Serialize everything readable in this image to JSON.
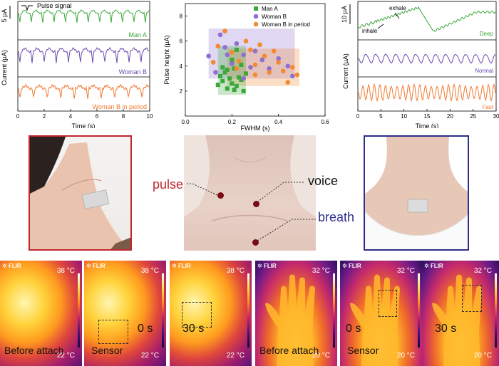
{
  "panel_a": {
    "ylabel": "Current (µA)",
    "scale_label": "5 µA",
    "pulse_signal_label": "Pulse signal",
    "xlabel": "Time (s)",
    "xticks": [
      "0",
      "2",
      "4",
      "6",
      "8",
      "10"
    ],
    "traces": [
      {
        "name": "Man A",
        "color": "#3aa83a"
      },
      {
        "name": "Woman B",
        "color": "#6a4bb0"
      },
      {
        "name": "Woman B in period",
        "color": "#f07a32"
      }
    ]
  },
  "panel_c": {
    "ylabel": "Current (µA)",
    "scale_label": "10 µA",
    "inhale_label": "inhale",
    "exhale_label": "exhale",
    "xlabel": "Time (s)",
    "xticks": [
      "0",
      "5",
      "10",
      "15",
      "20",
      "25",
      "30"
    ],
    "traces": [
      {
        "name": "Deep",
        "color": "#3aa83a"
      },
      {
        "name": "Normal",
        "color": "#6a4bb0"
      },
      {
        "name": "Fast",
        "color": "#f07a32"
      }
    ]
  },
  "chart_data": {
    "type": "scatter",
    "xlabel": "FWHM (s)",
    "ylabel": "Pulse height (µA)",
    "xlim": [
      0,
      0.6
    ],
    "ylim": [
      0,
      9
    ],
    "xticks": [
      "0.0",
      "0.2",
      "0.4",
      "0.6"
    ],
    "yticks": [
      "2",
      "4",
      "6",
      "8"
    ],
    "legend_position": "top-right",
    "series": [
      {
        "name": "Man A",
        "color": "#3aa83a",
        "marker": "square",
        "points": [
          [
            0.14,
            2.5
          ],
          [
            0.15,
            3.2
          ],
          [
            0.16,
            2.8
          ],
          [
            0.17,
            3.5
          ],
          [
            0.18,
            2.2
          ],
          [
            0.19,
            3.0
          ],
          [
            0.2,
            2.6
          ],
          [
            0.21,
            3.8
          ],
          [
            0.22,
            2.4
          ],
          [
            0.23,
            3.1
          ],
          [
            0.24,
            2.9
          ],
          [
            0.25,
            2.0
          ],
          [
            0.2,
            4.5
          ],
          [
            0.22,
            5.3
          ],
          [
            0.18,
            3.7
          ],
          [
            0.26,
            3.4
          ],
          [
            0.16,
            3.9
          ],
          [
            0.24,
            4.1
          ],
          [
            0.21,
            2.1
          ]
        ]
      },
      {
        "name": "Woman B",
        "color": "#8f6fd0",
        "marker": "circle",
        "points": [
          [
            0.1,
            4.8
          ],
          [
            0.13,
            3.5
          ],
          [
            0.15,
            6.5
          ],
          [
            0.17,
            5.5
          ],
          [
            0.2,
            4.2
          ],
          [
            0.22,
            5.8
          ],
          [
            0.25,
            4.9
          ],
          [
            0.28,
            3.9
          ],
          [
            0.3,
            5.2
          ],
          [
            0.33,
            4.5
          ],
          [
            0.36,
            3.8
          ],
          [
            0.4,
            4.6
          ],
          [
            0.44,
            4.0
          ],
          [
            0.46,
            3.2
          ],
          [
            0.25,
            3.0
          ],
          [
            0.18,
            4.9
          ]
        ]
      },
      {
        "name": "Woman B in period",
        "color": "#f28a33",
        "marker": "hexagon",
        "points": [
          [
            0.12,
            4.3
          ],
          [
            0.14,
            5.6
          ],
          [
            0.17,
            6.8
          ],
          [
            0.2,
            5.1
          ],
          [
            0.23,
            4.4
          ],
          [
            0.26,
            6.0
          ],
          [
            0.28,
            5.3
          ],
          [
            0.3,
            4.1
          ],
          [
            0.32,
            5.7
          ],
          [
            0.34,
            4.8
          ],
          [
            0.36,
            3.5
          ],
          [
            0.38,
            5.2
          ],
          [
            0.4,
            4.3
          ],
          [
            0.42,
            3.6
          ],
          [
            0.44,
            2.7
          ],
          [
            0.46,
            3.9
          ],
          [
            0.48,
            3.3
          ],
          [
            0.3,
            3.3
          ],
          [
            0.22,
            3.8
          ]
        ]
      }
    ],
    "regions": [
      {
        "series": "Woman B",
        "x": [
          0.1,
          0.47
        ],
        "y": [
          3.0,
          7.0
        ]
      },
      {
        "series": "Woman B in period",
        "x": [
          0.18,
          0.49
        ],
        "y": [
          2.4,
          5.4
        ]
      },
      {
        "series": "Man A",
        "x": [
          0.14,
          0.26
        ],
        "y": [
          1.7,
          5.6
        ]
      }
    ]
  },
  "panel_d": {
    "pulse_label": "pulse",
    "voice_label": "voice",
    "breath_label": "breath",
    "frame_left_color": "#c0282d",
    "frame_right_color": "#2e2e8f"
  },
  "thermal": [
    {
      "label": "Before attach",
      "time": "",
      "temp_max": "38 °C",
      "temp_min": "22 °C",
      "flir": "FLIR",
      "kind": "face"
    },
    {
      "label": "Sensor",
      "time": "0 s",
      "temp_max": "38 °C",
      "temp_min": "22 °C",
      "flir": "FLIR",
      "kind": "face"
    },
    {
      "label": "",
      "time": "30 s",
      "temp_max": "38 °C",
      "temp_min": "22 °C",
      "flir": "FLIR",
      "kind": "face"
    },
    {
      "label": "Before attach",
      "time": "",
      "temp_max": "32 °C",
      "temp_min": "20 °C",
      "flir": "FLIR",
      "kind": "hand"
    },
    {
      "label": "Sensor",
      "time": "0 s",
      "temp_max": "32 °C",
      "temp_min": "20 °C",
      "flir": "FLIR",
      "kind": "hand"
    },
    {
      "label": "",
      "time": "30 s",
      "temp_max": "32 °C",
      "temp_min": "20 °C",
      "flir": "FLIR",
      "kind": "hand"
    }
  ]
}
